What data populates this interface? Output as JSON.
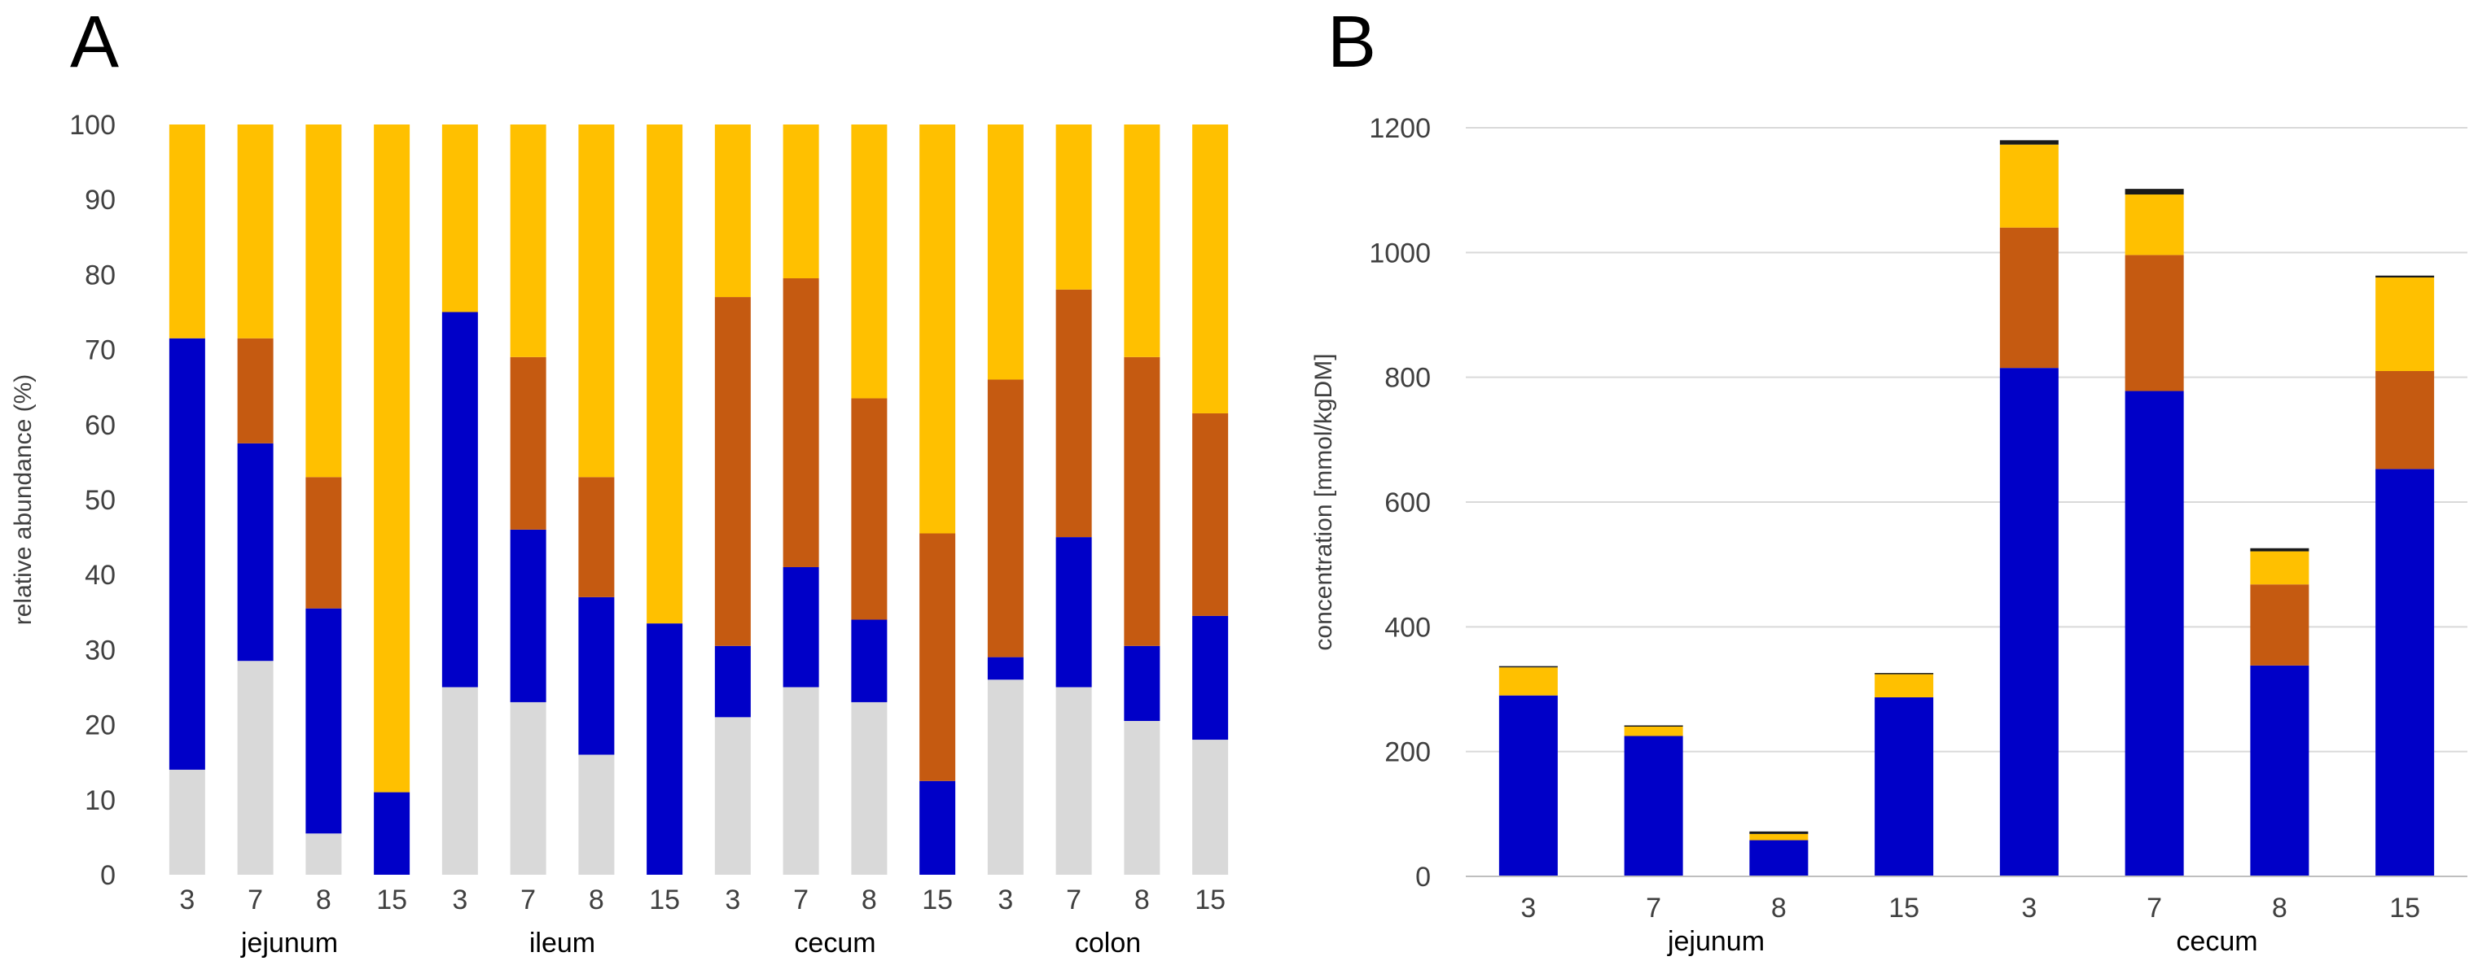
{
  "colors": {
    "grey": "#d9d9d9",
    "blue": "#0000c8",
    "brown": "#c55a11",
    "yellow": "#ffc000",
    "black": "#1a1a1a"
  },
  "chart_data": [
    {
      "panel": "A",
      "type": "bar",
      "stacked": true,
      "ylabel": "relative abundance (%)",
      "ylim": [
        0,
        100
      ],
      "yticks": [
        0,
        10,
        20,
        30,
        40,
        50,
        60,
        70,
        80,
        90,
        100
      ],
      "grid": false,
      "categories": [
        "3",
        "7",
        "8",
        "15",
        "3",
        "7",
        "8",
        "15",
        "3",
        "7",
        "8",
        "15",
        "3",
        "7",
        "8",
        "15"
      ],
      "groups": [
        {
          "label": "jejunum",
          "size": 4
        },
        {
          "label": "ileum",
          "size": 4
        },
        {
          "label": "cecum",
          "size": 4
        },
        {
          "label": "colon",
          "size": 4
        }
      ],
      "series": [
        {
          "color": "grey",
          "values": [
            14,
            28.5,
            5.5,
            0,
            25,
            23,
            16,
            0,
            21,
            25,
            23,
            0,
            26,
            25,
            20.5,
            18
          ]
        },
        {
          "color": "blue",
          "values": [
            57.5,
            29,
            30,
            11,
            50,
            23,
            21,
            33.5,
            9.5,
            16,
            11,
            12.5,
            3,
            20,
            10,
            16.5
          ]
        },
        {
          "color": "brown",
          "values": [
            0,
            14,
            17.5,
            0,
            0,
            23,
            16,
            0,
            46.5,
            38.5,
            29.5,
            33,
            37,
            33,
            38.5,
            27
          ]
        },
        {
          "color": "yellow",
          "values": [
            28.5,
            28.5,
            47,
            89,
            25,
            31,
            47,
            66.5,
            23,
            20.5,
            36.5,
            54.5,
            34,
            22,
            31,
            38.5
          ]
        }
      ]
    },
    {
      "panel": "B",
      "type": "bar",
      "stacked": true,
      "ylabel": "concentration [mmol/kgDM]",
      "ylim": [
        0,
        1200
      ],
      "yticks": [
        0,
        200,
        400,
        600,
        800,
        1000,
        1200
      ],
      "grid": true,
      "categories": [
        "3",
        "7",
        "8",
        "15",
        "3",
        "7",
        "8",
        "15"
      ],
      "groups": [
        {
          "label": "jejunum",
          "size": 4
        },
        {
          "label": "cecum",
          "size": 4
        }
      ],
      "series": [
        {
          "color": "blue",
          "values": [
            290,
            225,
            58,
            287,
            815,
            778,
            338,
            653
          ]
        },
        {
          "color": "brown",
          "values": [
            0,
            0,
            0,
            0,
            225,
            218,
            130,
            157
          ]
        },
        {
          "color": "yellow",
          "values": [
            45,
            15,
            10,
            37,
            133,
            97,
            53,
            150
          ]
        },
        {
          "color": "black",
          "values": [
            2,
            2,
            4,
            2,
            7,
            9,
            5,
            3
          ]
        }
      ]
    }
  ]
}
